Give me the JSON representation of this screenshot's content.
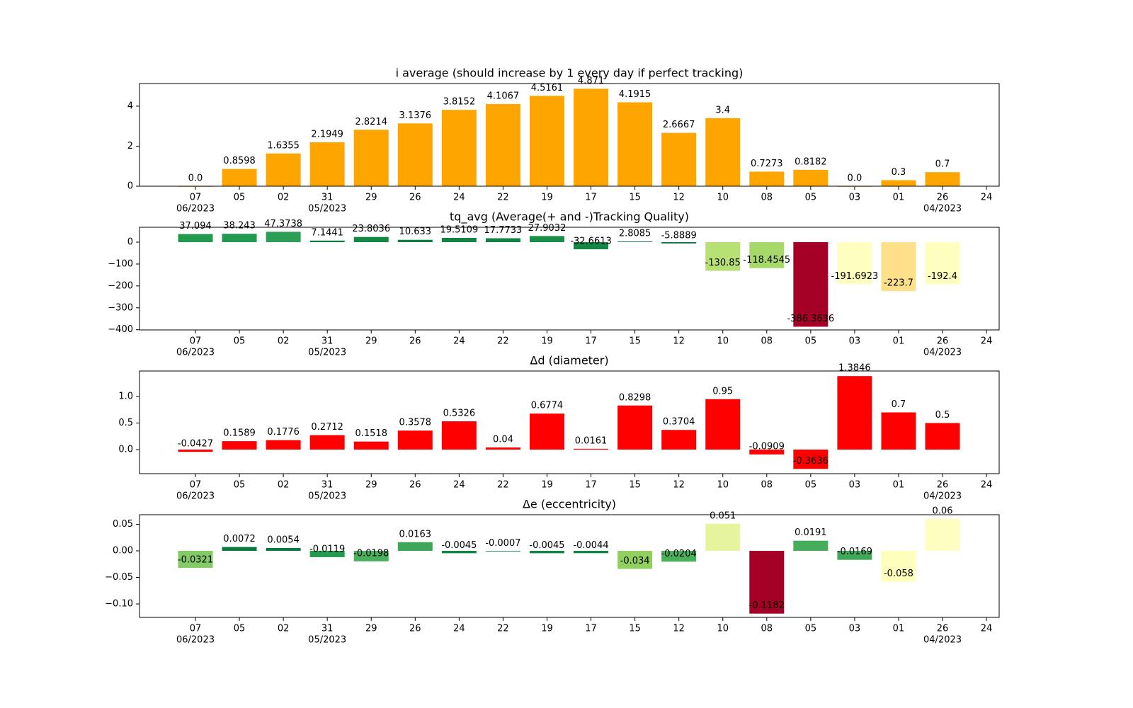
{
  "chart_data": [
    {
      "type": "bar",
      "title": "i average (should increase by 1 every day if perfect tracking)",
      "categories": [
        "07",
        "05",
        "02",
        "31",
        "29",
        "26",
        "24",
        "22",
        "19",
        "17",
        "15",
        "12",
        "10",
        "08",
        "05",
        "03",
        "01",
        "26",
        "24"
      ],
      "month_labels": [
        "06/2023",
        null,
        null,
        "05/2023",
        null,
        null,
        null,
        null,
        null,
        null,
        null,
        null,
        null,
        null,
        null,
        null,
        null,
        "04/2023",
        null
      ],
      "values": [
        0.0,
        0.8598,
        1.6355,
        2.1949,
        2.8214,
        3.1376,
        3.8152,
        4.1067,
        4.5161,
        4.871,
        4.1915,
        2.6667,
        3.4,
        0.7273,
        0.8182,
        0.0,
        0.3,
        0.7,
        null
      ],
      "value_labels": [
        "0.0",
        "0.8598",
        "1.6355",
        "2.1949",
        "2.8214",
        "3.1376",
        "3.8152",
        "4.1067",
        "4.5161",
        "4.871",
        "4.1915",
        "2.6667",
        "3.4",
        "0.7273",
        "0.8182",
        "0.0",
        "0.3",
        "0.7",
        null
      ],
      "color": "#ffa500",
      "ylim": [
        0,
        5.13
      ],
      "yticks": [
        0,
        2,
        4
      ]
    },
    {
      "type": "bar",
      "title": "tq_avg (Average(+ and -)Tracking Quality)",
      "categories": [
        "07",
        "05",
        "02",
        "31",
        "29",
        "26",
        "24",
        "22",
        "19",
        "17",
        "15",
        "12",
        "10",
        "08",
        "05",
        "03",
        "01",
        "26",
        "24"
      ],
      "month_labels": [
        "06/2023",
        null,
        null,
        "05/2023",
        null,
        null,
        null,
        null,
        null,
        null,
        null,
        null,
        null,
        null,
        null,
        null,
        null,
        "04/2023",
        null
      ],
      "values": [
        37.094,
        38.243,
        47.3738,
        7.1441,
        23.8036,
        10.633,
        19.5109,
        17.7733,
        27.9032,
        -32.6613,
        2.8085,
        -5.8889,
        -130.85,
        -118.4545,
        -386.3636,
        -191.6923,
        -223.7,
        -192.4,
        null
      ],
      "value_labels": [
        "37.094",
        "38.243",
        "47.3738",
        "7.1441",
        "23.8036",
        "10.633",
        "19.5109",
        "17.7733",
        "27.9032",
        "-32.6613",
        "2.8085",
        "-5.8889",
        "-130.85",
        "-118.4545",
        "-386.3636",
        "-191.6923",
        "-223.7",
        "-192.4",
        null
      ],
      "colors": [
        "#23994f",
        "#23994f",
        "#2d9e55",
        "#0c7a3e",
        "#138845",
        "#0e7d40",
        "#118343",
        "#108242",
        "#188e49",
        "#138745",
        "#006837",
        "#07753c",
        "#b7e075",
        "#a6d96a",
        "#a50026",
        "#feffbe",
        "#fee08b",
        "#feffbe",
        null
      ],
      "ylim": [
        -401,
        68
      ],
      "yticks": [
        {
          "value": -400,
          "label": "−400"
        },
        {
          "value": -300,
          "label": "−300"
        },
        {
          "value": -200,
          "label": "−200"
        },
        {
          "value": -100,
          "label": "−100"
        },
        0
      ]
    },
    {
      "type": "bar",
      "title": "Δd (diameter)",
      "categories": [
        "07",
        "05",
        "02",
        "31",
        "29",
        "26",
        "24",
        "22",
        "19",
        "17",
        "15",
        "12",
        "10",
        "08",
        "05",
        "03",
        "01",
        "26",
        "24"
      ],
      "month_labels": [
        "06/2023",
        null,
        null,
        "05/2023",
        null,
        null,
        null,
        null,
        null,
        null,
        null,
        null,
        null,
        null,
        null,
        null,
        null,
        "04/2023",
        null
      ],
      "values": [
        -0.0427,
        0.1589,
        0.1776,
        0.2712,
        0.1518,
        0.3578,
        0.5326,
        0.04,
        0.6774,
        0.0161,
        0.8298,
        0.3704,
        0.95,
        -0.0909,
        -0.3636,
        1.3846,
        0.7,
        0.5,
        null
      ],
      "value_labels": [
        "-0.0427",
        "0.1589",
        "0.1776",
        "0.2712",
        "0.1518",
        "0.3578",
        "0.5326",
        "0.04",
        "0.6774",
        "0.0161",
        "0.8298",
        "0.3704",
        "0.95",
        "-0.0909",
        "-0.3636",
        "1.3846",
        "0.7",
        "0.5",
        null
      ],
      "color": "#ff0000",
      "ylim": [
        -0.453,
        1.48
      ],
      "yticks": [
        {
          "value": 0,
          "label": "0.0"
        },
        0.5,
        {
          "value": 1,
          "label": "1.0"
        }
      ]
    },
    {
      "type": "bar",
      "title": "Δe (eccentricity)",
      "categories": [
        "07",
        "05",
        "02",
        "31",
        "29",
        "26",
        "24",
        "22",
        "19",
        "17",
        "15",
        "12",
        "10",
        "08",
        "05",
        "03",
        "01",
        "26",
        "24"
      ],
      "month_labels": [
        "06/2023",
        null,
        null,
        "05/2023",
        null,
        null,
        null,
        null,
        null,
        null,
        null,
        null,
        null,
        null,
        null,
        null,
        null,
        "04/2023",
        null
      ],
      "values": [
        -0.0321,
        0.0072,
        0.0054,
        -0.0119,
        -0.0198,
        0.0163,
        -0.0045,
        -0.0007,
        -0.0045,
        -0.0044,
        -0.034,
        -0.0204,
        0.051,
        -0.1182,
        0.0191,
        -0.0169,
        -0.058,
        0.06,
        null
      ],
      "colors": [
        "#84ca66",
        "#0a7a3f",
        "#097a3e",
        "#249c50",
        "#4bb05c",
        "#3ca659",
        "#108443",
        "#006837",
        "#108443",
        "#108443",
        "#91cf60",
        "#4bb05c",
        "#e6f59d",
        "#a50026",
        "#46ad5c",
        "#3ea95a",
        "#fefebd",
        "#fefec0",
        null
      ],
      "ylim": [
        -0.1253,
        0.068
      ],
      "yticks": [
        {
          "value": -0.1,
          "label": "−0.10"
        },
        {
          "value": -0.05,
          "label": "−0.05"
        },
        {
          "value": 0,
          "label": "0.00"
        },
        {
          "value": 0.05,
          "label": "0.05"
        }
      ]
    }
  ]
}
